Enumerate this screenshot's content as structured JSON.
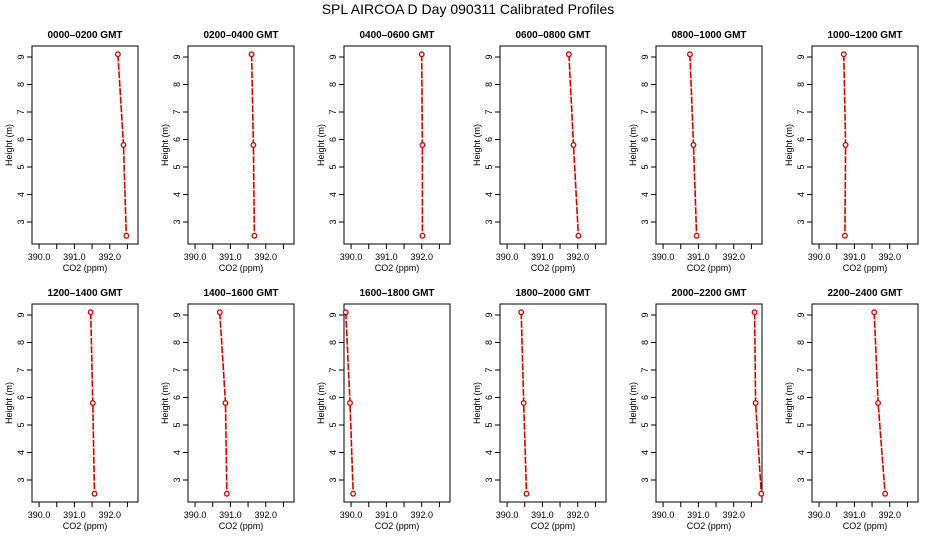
{
  "page": {
    "title": "SPL AIRCOA D  Day 090311  Calibrated Profiles"
  },
  "colors": {
    "series": "#d40000",
    "axis": "#000000",
    "background": "#ffffff"
  },
  "chart_data": [
    {
      "type": "line",
      "title": "0000–0200 GMT",
      "xlabel": "CO2 (ppm)",
      "ylabel": "Height (m)",
      "xlim": [
        389.8,
        392.8
      ],
      "ylim": [
        2.2,
        9.4
      ],
      "xticks": [
        "390.0",
        "391.0",
        "392.0"
      ],
      "yticks": [
        "3",
        "4",
        "5",
        "6",
        "7",
        "8",
        "9"
      ],
      "grid": false,
      "series": [
        {
          "x": [
            392.23,
            392.39,
            392.47
          ],
          "y": [
            9.1,
            5.8,
            2.5
          ]
        }
      ]
    },
    {
      "type": "line",
      "title": "0200–0400 GMT",
      "xlabel": "CO2 (ppm)",
      "ylabel": "Height (m)",
      "xlim": [
        389.8,
        392.8
      ],
      "ylim": [
        2.2,
        9.4
      ],
      "xticks": [
        "390.0",
        "391.0",
        "392.0"
      ],
      "yticks": [
        "3",
        "4",
        "5",
        "6",
        "7",
        "8",
        "9"
      ],
      "grid": false,
      "series": [
        {
          "x": [
            391.6,
            391.65,
            391.68
          ],
          "y": [
            9.1,
            5.8,
            2.5
          ]
        }
      ]
    },
    {
      "type": "line",
      "title": "0400–0600 GMT",
      "xlabel": "CO2 (ppm)",
      "ylabel": "Height (m)",
      "xlim": [
        389.8,
        392.8
      ],
      "ylim": [
        2.2,
        9.4
      ],
      "xticks": [
        "390.0",
        "391.0",
        "392.0"
      ],
      "yticks": [
        "3",
        "4",
        "5",
        "6",
        "7",
        "8",
        "9"
      ],
      "grid": false,
      "series": [
        {
          "x": [
            392.0,
            392.02,
            392.02
          ],
          "y": [
            9.1,
            5.8,
            2.5
          ]
        }
      ]
    },
    {
      "type": "line",
      "title": "0600–0800 GMT",
      "xlabel": "CO2 (ppm)",
      "ylabel": "Height (m)",
      "xlim": [
        389.8,
        392.8
      ],
      "ylim": [
        2.2,
        9.4
      ],
      "xticks": [
        "390.0",
        "391.0",
        "392.0"
      ],
      "yticks": [
        "3",
        "4",
        "5",
        "6",
        "7",
        "8",
        "9"
      ],
      "grid": false,
      "series": [
        {
          "x": [
            391.75,
            391.88,
            392.02
          ],
          "y": [
            9.1,
            5.8,
            2.5
          ]
        }
      ]
    },
    {
      "type": "line",
      "title": "0800–1000 GMT",
      "xlabel": "CO2 (ppm)",
      "ylabel": "Height (m)",
      "xlim": [
        389.8,
        392.8
      ],
      "ylim": [
        2.2,
        9.4
      ],
      "xticks": [
        "390.0",
        "391.0",
        "392.0"
      ],
      "yticks": [
        "3",
        "4",
        "5",
        "6",
        "7",
        "8",
        "9"
      ],
      "grid": false,
      "series": [
        {
          "x": [
            390.76,
            390.86,
            390.95
          ],
          "y": [
            9.1,
            5.8,
            2.5
          ]
        }
      ]
    },
    {
      "type": "line",
      "title": "1000–1200 GMT",
      "xlabel": "CO2 (ppm)",
      "ylabel": "Height (m)",
      "xlim": [
        389.8,
        392.8
      ],
      "ylim": [
        2.2,
        9.4
      ],
      "xticks": [
        "390.0",
        "391.0",
        "392.0"
      ],
      "yticks": [
        "3",
        "4",
        "5",
        "6",
        "7",
        "8",
        "9"
      ],
      "grid": false,
      "series": [
        {
          "x": [
            390.7,
            390.75,
            390.73
          ],
          "y": [
            9.1,
            5.8,
            2.5
          ]
        }
      ]
    },
    {
      "type": "line",
      "title": "1200–1400 GMT",
      "xlabel": "CO2 (ppm)",
      "ylabel": "Height (m)",
      "xlim": [
        389.8,
        392.8
      ],
      "ylim": [
        2.2,
        9.4
      ],
      "xticks": [
        "390.0",
        "391.0",
        "392.0"
      ],
      "yticks": [
        "3",
        "4",
        "5",
        "6",
        "7",
        "8",
        "9"
      ],
      "grid": false,
      "series": [
        {
          "x": [
            391.46,
            391.52,
            391.57
          ],
          "y": [
            9.1,
            5.8,
            2.5
          ]
        }
      ]
    },
    {
      "type": "line",
      "title": "1400–1600 GMT",
      "xlabel": "CO2 (ppm)",
      "ylabel": "Height (m)",
      "xlim": [
        389.8,
        392.8
      ],
      "ylim": [
        2.2,
        9.4
      ],
      "xticks": [
        "390.0",
        "391.0",
        "392.0"
      ],
      "yticks": [
        "3",
        "4",
        "5",
        "6",
        "7",
        "8",
        "9"
      ],
      "grid": false,
      "series": [
        {
          "x": [
            390.7,
            390.86,
            390.9
          ],
          "y": [
            9.1,
            5.8,
            2.5
          ]
        }
      ]
    },
    {
      "type": "line",
      "title": "1600–1800 GMT",
      "xlabel": "CO2 (ppm)",
      "ylabel": "Height (m)",
      "xlim": [
        389.8,
        392.8
      ],
      "ylim": [
        2.2,
        9.4
      ],
      "xticks": [
        "390.0",
        "391.0",
        "392.0"
      ],
      "yticks": [
        "3",
        "4",
        "5",
        "6",
        "7",
        "8",
        "9"
      ],
      "grid": false,
      "series": [
        {
          "x": [
            389.85,
            389.97,
            390.06
          ],
          "y": [
            9.1,
            5.8,
            2.5
          ]
        }
      ]
    },
    {
      "type": "line",
      "title": "1800–2000 GMT",
      "xlabel": "CO2 (ppm)",
      "ylabel": "Height (m)",
      "xlim": [
        389.8,
        392.8
      ],
      "ylim": [
        2.2,
        9.4
      ],
      "xticks": [
        "390.0",
        "391.0",
        "392.0"
      ],
      "yticks": [
        "3",
        "4",
        "5",
        "6",
        "7",
        "8",
        "9"
      ],
      "grid": false,
      "series": [
        {
          "x": [
            390.4,
            390.47,
            390.55
          ],
          "y": [
            9.1,
            5.8,
            2.5
          ]
        }
      ]
    },
    {
      "type": "line",
      "title": "2000–2200 GMT",
      "xlabel": "CO2 (ppm)",
      "ylabel": "Height (m)",
      "xlim": [
        389.8,
        392.8
      ],
      "ylim": [
        2.2,
        9.4
      ],
      "xticks": [
        "390.0",
        "391.0",
        "392.0"
      ],
      "yticks": [
        "3",
        "4",
        "5",
        "6",
        "7",
        "8",
        "9"
      ],
      "grid": false,
      "series": [
        {
          "x": [
            392.59,
            392.62,
            392.78
          ],
          "y": [
            9.1,
            5.8,
            2.5
          ]
        }
      ]
    },
    {
      "type": "line",
      "title": "2200–2400 GMT",
      "xlabel": "CO2 (ppm)",
      "ylabel": "Height (m)",
      "xlim": [
        389.8,
        392.8
      ],
      "ylim": [
        2.2,
        9.4
      ],
      "xticks": [
        "390.0",
        "391.0",
        "392.0"
      ],
      "yticks": [
        "3",
        "4",
        "5",
        "6",
        "7",
        "8",
        "9"
      ],
      "grid": false,
      "series": [
        {
          "x": [
            391.56,
            391.67,
            391.87
          ],
          "y": [
            9.1,
            5.8,
            2.5
          ]
        }
      ]
    }
  ]
}
